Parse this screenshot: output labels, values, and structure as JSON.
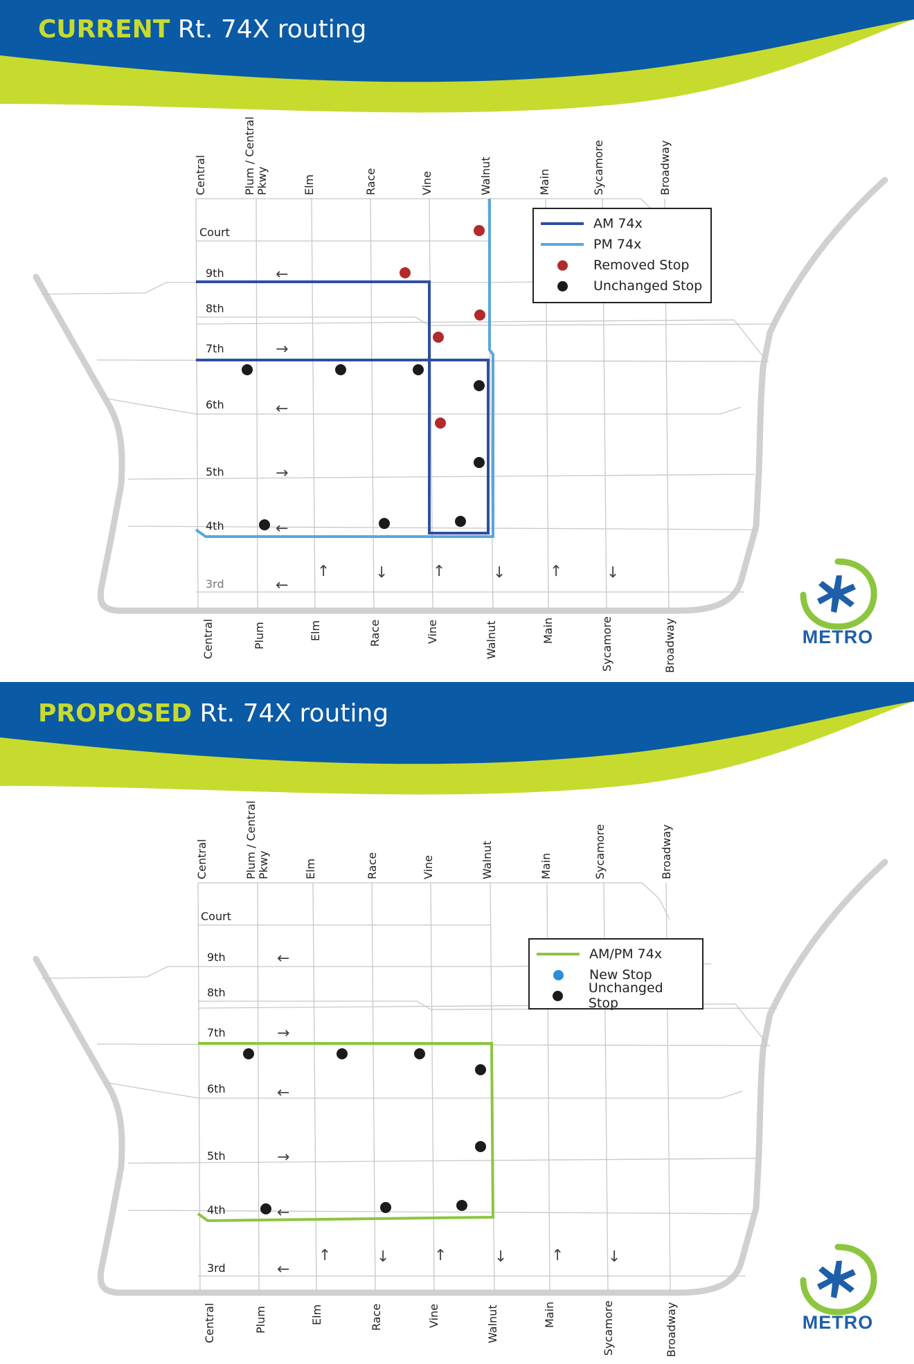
{
  "top": {
    "title_highlight": "CURRENT",
    "title_rest": " Rt. 74X routing",
    "legend": [
      {
        "kind": "line",
        "color": "#2d4f9e",
        "label": "AM 74x"
      },
      {
        "kind": "line",
        "color": "#5aa6dc",
        "label": "PM 74x"
      },
      {
        "kind": "dot",
        "color": "#b22a2a",
        "label": "Removed Stop"
      },
      {
        "kind": "dot",
        "color": "#1b1b1b",
        "label": "Unchanged Stop"
      }
    ]
  },
  "bottom": {
    "title_highlight": "PROPOSED",
    "title_rest": " Rt. 74X routing",
    "legend": [
      {
        "kind": "line",
        "color": "#8cc63f",
        "label": "AM/PM 74x"
      },
      {
        "kind": "dot",
        "color": "#2a8fd6",
        "label": "New Stop"
      },
      {
        "kind": "dot",
        "color": "#1b1b1b",
        "label": "Unchanged Stop"
      }
    ]
  },
  "streets_top": [
    "Central",
    "Plum / Central Pkwy",
    "Elm",
    "Race",
    "Vine",
    "Walnut",
    "Main",
    "Sycamore",
    "Broadway"
  ],
  "streets_bottom": [
    "Central",
    "Plum",
    "Elm",
    "Race",
    "Vine",
    "Walnut",
    "Main",
    "Sycamore",
    "Broadway"
  ],
  "cross_streets": [
    "Court",
    "9th",
    "8th",
    "7th",
    "6th",
    "5th",
    "4th",
    "3rd"
  ],
  "logo_text": "METRO",
  "colors": {
    "header_blue": "#0a5aa6",
    "header_green": "#c7db2f",
    "am_route": "#2d4f9e",
    "pm_route": "#5aa6dc",
    "proposed_route": "#8cc63f",
    "removed_stop": "#b22a2a",
    "unchanged_stop": "#1b1b1b"
  }
}
